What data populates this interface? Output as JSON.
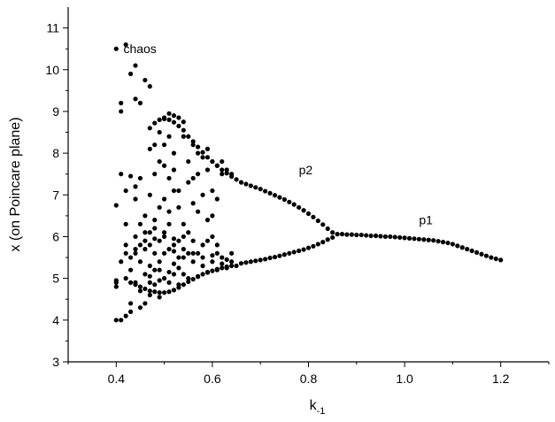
{
  "chart_data": {
    "type": "scatter",
    "title": "",
    "xlabel": "k",
    "xlabel_subscript": "-1",
    "ylabel": "x (on Poincare plane)",
    "xlim": [
      0.3,
      1.3
    ],
    "ylim": [
      3,
      11.5
    ],
    "xticks": [
      0.4,
      0.6,
      0.8,
      1.0,
      1.2
    ],
    "xtick_labels": [
      "0.4",
      "0.6",
      "0.8",
      "1.0",
      "1.2"
    ],
    "yticks": [
      3,
      4,
      5,
      6,
      7,
      8,
      9,
      10,
      11
    ],
    "ytick_labels": [
      "3",
      "4",
      "5",
      "6",
      "7",
      "8",
      "9",
      "10",
      "11"
    ],
    "grid": false,
    "marker_color": "#000000",
    "annotations": [
      {
        "text": "chaos",
        "x": 0.415,
        "y": 10.5
      },
      {
        "text": "p2",
        "x": 0.78,
        "y": 7.6
      },
      {
        "text": "p1",
        "x": 1.03,
        "y": 6.4
      }
    ],
    "series": [
      {
        "points": [
          [
            0.4,
            10.5
          ],
          [
            0.41,
            9.0
          ],
          [
            0.41,
            9.2
          ],
          [
            0.42,
            10.6
          ],
          [
            0.43,
            9.9
          ],
          [
            0.44,
            10.1
          ],
          [
            0.44,
            9.3
          ],
          [
            0.45,
            9.2
          ],
          [
            0.46,
            9.75
          ],
          [
            0.47,
            9.6
          ],
          [
            0.4,
            6.75
          ],
          [
            0.41,
            7.5
          ],
          [
            0.42,
            7.1
          ],
          [
            0.42,
            6.3
          ],
          [
            0.43,
            7.45
          ],
          [
            0.44,
            6.9
          ],
          [
            0.4,
            4.8
          ],
          [
            0.4,
            4.95
          ],
          [
            0.41,
            5.4
          ],
          [
            0.42,
            5.8
          ],
          [
            0.43,
            5.2
          ],
          [
            0.44,
            5.6
          ],
          [
            0.45,
            5.4
          ],
          [
            0.46,
            5.9
          ],
          [
            0.47,
            5.3
          ],
          [
            0.46,
            6.5
          ],
          [
            0.47,
            7.0
          ],
          [
            0.48,
            7.5
          ],
          [
            0.48,
            6.2
          ],
          [
            0.49,
            7.8
          ],
          [
            0.49,
            8.5
          ],
          [
            0.5,
            8.2
          ],
          [
            0.5,
            6.9
          ],
          [
            0.51,
            7.4
          ],
          [
            0.51,
            6.3
          ],
          [
            0.52,
            8.0
          ],
          [
            0.52,
            7.6
          ],
          [
            0.53,
            6.7
          ],
          [
            0.53,
            7.1
          ],
          [
            0.54,
            6.0
          ],
          [
            0.55,
            7.3
          ],
          [
            0.56,
            6.8
          ],
          [
            0.56,
            7.4
          ],
          [
            0.57,
            6.6
          ],
          [
            0.57,
            8.0
          ],
          [
            0.58,
            7.0
          ],
          [
            0.59,
            6.4
          ],
          [
            0.59,
            7.6
          ],
          [
            0.6,
            6.5
          ],
          [
            0.6,
            7.1
          ],
          [
            0.61,
            6.9
          ],
          [
            0.48,
            5.6
          ],
          [
            0.49,
            5.9
          ],
          [
            0.5,
            6.1
          ],
          [
            0.51,
            5.7
          ],
          [
            0.52,
            5.95
          ],
          [
            0.53,
            5.5
          ],
          [
            0.54,
            5.7
          ],
          [
            0.55,
            5.6
          ],
          [
            0.56,
            5.4
          ],
          [
            0.48,
            5.2
          ],
          [
            0.49,
            5.4
          ],
          [
            0.5,
            5.0
          ],
          [
            0.51,
            5.15
          ],
          [
            0.52,
            5.35
          ],
          [
            0.53,
            5.25
          ],
          [
            0.54,
            5.1
          ],
          [
            0.43,
            4.4
          ],
          [
            0.46,
            4.4
          ],
          [
            0.47,
            4.6
          ],
          [
            0.48,
            4.85
          ],
          [
            0.49,
            4.55
          ],
          [
            0.58,
            5.3
          ],
          [
            0.6,
            5.4
          ],
          [
            0.61,
            5.8
          ],
          [
            0.62,
            5.5
          ],
          [
            0.63,
            5.45
          ],
          [
            0.64,
            5.6
          ],
          [
            0.5,
            8.85
          ],
          [
            0.51,
            8.95
          ],
          [
            0.52,
            8.9
          ],
          [
            0.53,
            8.85
          ],
          [
            0.54,
            8.75
          ],
          [
            0.4,
            4.0
          ],
          [
            0.41,
            4.0
          ],
          [
            0.42,
            4.1
          ],
          [
            0.43,
            4.2
          ],
          [
            0.45,
            4.3
          ],
          [
            0.4,
            4.9
          ],
          [
            0.42,
            5.0
          ],
          [
            0.44,
            4.85
          ],
          [
            0.46,
            5.1
          ],
          [
            0.47,
            5.05
          ],
          [
            0.49,
            5.2
          ],
          [
            0.52,
            5.1
          ],
          [
            0.44,
            6.0
          ],
          [
            0.45,
            6.3
          ],
          [
            0.46,
            6.1
          ],
          [
            0.47,
            5.8
          ],
          [
            0.48,
            6.4
          ],
          [
            0.5,
            6.0
          ],
          [
            0.51,
            6.6
          ],
          [
            0.52,
            5.8
          ],
          [
            0.53,
            5.9
          ],
          [
            0.54,
            6.3
          ],
          [
            0.55,
            6.1
          ],
          [
            0.56,
            5.9
          ],
          [
            0.57,
            5.6
          ],
          [
            0.58,
            5.8
          ],
          [
            0.59,
            5.9
          ],
          [
            0.6,
            6.0
          ],
          [
            0.61,
            5.6
          ],
          [
            0.43,
            4.9
          ],
          [
            0.45,
            4.7
          ],
          [
            0.47,
            4.9
          ],
          [
            0.49,
            4.95
          ],
          [
            0.51,
            4.9
          ],
          [
            0.53,
            4.85
          ],
          [
            0.55,
            5.0
          ],
          [
            0.57,
            5.05
          ],
          [
            0.59,
            5.15
          ],
          [
            0.61,
            5.2
          ],
          [
            0.63,
            5.25
          ],
          [
            0.65,
            5.3
          ],
          [
            0.44,
            7.2
          ],
          [
            0.45,
            7.4
          ],
          [
            0.47,
            8.1
          ],
          [
            0.48,
            8.2
          ],
          [
            0.49,
            6.7
          ],
          [
            0.5,
            7.7
          ],
          [
            0.51,
            8.4
          ],
          [
            0.52,
            7.1
          ],
          [
            0.54,
            8.4
          ],
          [
            0.55,
            7.8
          ],
          [
            0.56,
            8.2
          ],
          [
            0.57,
            7.5
          ],
          [
            0.58,
            7.9
          ],
          [
            0.59,
            8.1
          ],
          [
            0.6,
            7.8
          ],
          [
            0.61,
            7.7
          ],
          [
            0.62,
            7.5
          ],
          [
            0.62,
            7.8
          ],
          [
            0.63,
            7.6
          ],
          [
            0.64,
            7.5
          ],
          [
            0.42,
            5.6
          ],
          [
            0.43,
            5.5
          ],
          [
            0.44,
            5.7
          ],
          [
            0.45,
            5.8
          ],
          [
            0.46,
            5.7
          ],
          [
            0.47,
            6.1
          ],
          [
            0.48,
            5.95
          ],
          [
            0.5,
            5.6
          ],
          [
            0.52,
            5.65
          ],
          [
            0.54,
            5.5
          ],
          [
            0.56,
            5.6
          ],
          [
            0.58,
            5.5
          ],
          [
            0.6,
            5.55
          ],
          [
            0.62,
            5.35
          ],
          [
            0.64,
            5.4
          ]
        ]
      },
      {
        "points": [
          [
            0.44,
            4.9
          ],
          [
            0.45,
            4.8
          ],
          [
            0.46,
            4.75
          ],
          [
            0.47,
            4.7
          ],
          [
            0.48,
            4.68
          ],
          [
            0.49,
            4.66
          ],
          [
            0.5,
            4.66
          ],
          [
            0.51,
            4.68
          ],
          [
            0.52,
            4.72
          ],
          [
            0.53,
            4.78
          ],
          [
            0.54,
            4.85
          ],
          [
            0.55,
            4.92
          ],
          [
            0.56,
            4.98
          ],
          [
            0.57,
            5.04
          ],
          [
            0.58,
            5.1
          ],
          [
            0.59,
            5.14
          ],
          [
            0.6,
            5.18
          ],
          [
            0.61,
            5.22
          ],
          [
            0.62,
            5.25
          ],
          [
            0.63,
            5.28
          ],
          [
            0.64,
            5.3
          ],
          [
            0.47,
            8.6
          ],
          [
            0.48,
            8.72
          ],
          [
            0.49,
            8.8
          ],
          [
            0.5,
            8.82
          ],
          [
            0.51,
            8.8
          ],
          [
            0.52,
            8.74
          ],
          [
            0.53,
            8.65
          ],
          [
            0.54,
            8.55
          ],
          [
            0.55,
            8.4
          ],
          [
            0.56,
            8.28
          ],
          [
            0.57,
            8.15
          ],
          [
            0.58,
            8.02
          ],
          [
            0.59,
            7.9
          ],
          [
            0.6,
            7.8
          ],
          [
            0.61,
            7.7
          ],
          [
            0.62,
            7.6
          ],
          [
            0.63,
            7.52
          ],
          [
            0.64,
            7.44
          ],
          [
            0.65,
            7.37
          ],
          [
            0.66,
            7.3
          ],
          [
            0.67,
            7.26
          ],
          [
            0.68,
            7.22
          ],
          [
            0.69,
            7.18
          ],
          [
            0.7,
            7.14
          ],
          [
            0.71,
            7.09
          ],
          [
            0.72,
            7.04
          ],
          [
            0.73,
            6.99
          ],
          [
            0.74,
            6.94
          ],
          [
            0.75,
            6.89
          ],
          [
            0.76,
            6.83
          ],
          [
            0.77,
            6.77
          ],
          [
            0.78,
            6.7
          ],
          [
            0.79,
            6.63
          ],
          [
            0.8,
            6.55
          ],
          [
            0.81,
            6.47
          ],
          [
            0.82,
            6.38
          ],
          [
            0.83,
            6.29
          ],
          [
            0.84,
            6.19
          ],
          [
            0.85,
            6.1
          ],
          [
            0.86,
            6.06
          ],
          [
            0.66,
            5.36
          ],
          [
            0.67,
            5.38
          ],
          [
            0.68,
            5.4
          ],
          [
            0.69,
            5.42
          ],
          [
            0.7,
            5.44
          ],
          [
            0.71,
            5.46
          ],
          [
            0.72,
            5.49
          ],
          [
            0.73,
            5.51
          ],
          [
            0.74,
            5.54
          ],
          [
            0.75,
            5.57
          ],
          [
            0.76,
            5.6
          ],
          [
            0.77,
            5.63
          ],
          [
            0.78,
            5.66
          ],
          [
            0.79,
            5.69
          ],
          [
            0.8,
            5.73
          ],
          [
            0.81,
            5.77
          ],
          [
            0.82,
            5.82
          ],
          [
            0.83,
            5.87
          ],
          [
            0.84,
            5.93
          ],
          [
            0.85,
            5.98
          ],
          [
            0.87,
            6.06
          ],
          [
            0.88,
            6.05
          ],
          [
            0.89,
            6.05
          ],
          [
            0.9,
            6.04
          ],
          [
            0.91,
            6.04
          ],
          [
            0.92,
            6.03
          ],
          [
            0.93,
            6.02
          ],
          [
            0.94,
            6.02
          ],
          [
            0.95,
            6.01
          ],
          [
            0.96,
            6.0
          ],
          [
            0.97,
            6.0
          ],
          [
            0.98,
            5.99
          ],
          [
            0.99,
            5.98
          ],
          [
            1.0,
            5.97
          ],
          [
            1.01,
            5.96
          ],
          [
            1.02,
            5.95
          ],
          [
            1.03,
            5.94
          ],
          [
            1.04,
            5.93
          ],
          [
            1.05,
            5.92
          ],
          [
            1.06,
            5.91
          ],
          [
            1.07,
            5.89
          ],
          [
            1.08,
            5.87
          ],
          [
            1.09,
            5.85
          ],
          [
            1.1,
            5.82
          ],
          [
            1.11,
            5.78
          ],
          [
            1.12,
            5.74
          ],
          [
            1.13,
            5.7
          ],
          [
            1.14,
            5.66
          ],
          [
            1.15,
            5.62
          ],
          [
            1.16,
            5.58
          ],
          [
            1.17,
            5.54
          ],
          [
            1.18,
            5.5
          ],
          [
            1.19,
            5.47
          ],
          [
            1.2,
            5.44
          ]
        ]
      }
    ]
  }
}
